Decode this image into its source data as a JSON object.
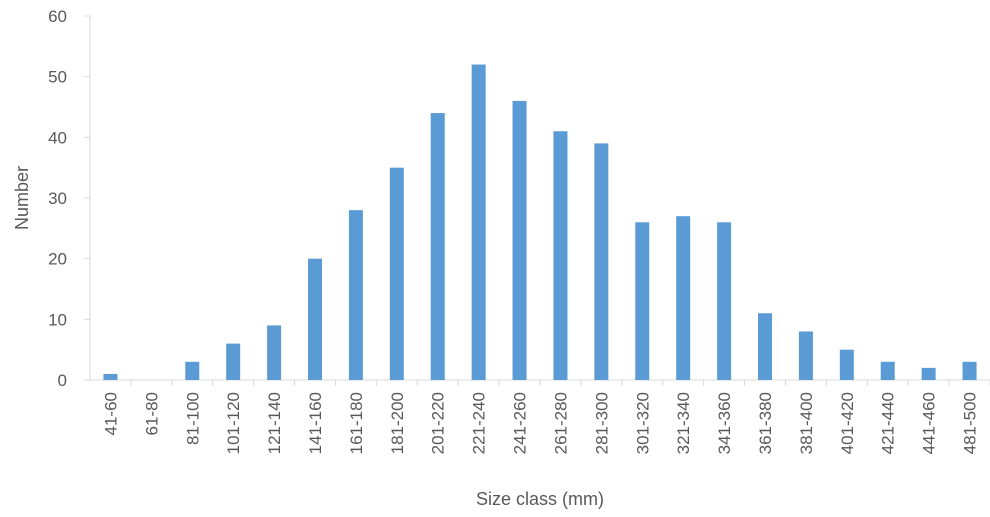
{
  "chart_data": {
    "type": "bar",
    "title": "",
    "xlabel": "Size class (mm)",
    "ylabel": "Number",
    "ylim": [
      0,
      60
    ],
    "yticks": [
      0,
      10,
      20,
      30,
      40,
      50,
      60
    ],
    "grid": false,
    "legend": "none",
    "bar_color": "#5b9bd5",
    "categories": [
      "41-60",
      "61-80",
      "81-100",
      "101-120",
      "121-140",
      "141-160",
      "161-180",
      "181-200",
      "201-220",
      "221-240",
      "241-260",
      "261-280",
      "281-300",
      "301-320",
      "321-340",
      "341-360",
      "361-380",
      "381-400",
      "401-420",
      "421-440",
      "441-460",
      "481-500"
    ],
    "values": [
      1,
      0,
      3,
      6,
      9,
      20,
      28,
      35,
      44,
      52,
      46,
      41,
      39,
      26,
      27,
      26,
      11,
      8,
      5,
      3,
      2,
      3
    ]
  }
}
